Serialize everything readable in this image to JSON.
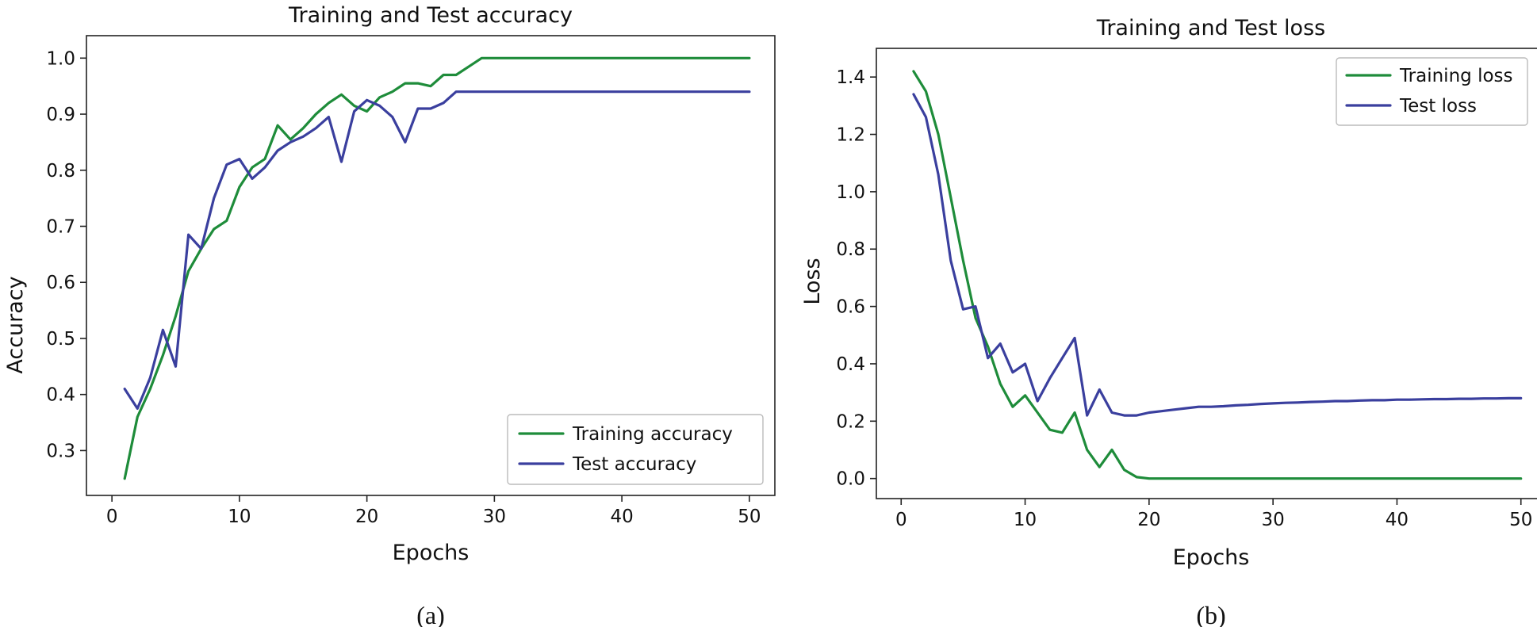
{
  "figure": {
    "captions": [
      "(a)",
      "(b)"
    ]
  },
  "colors": {
    "training": "#1e8c3a",
    "test": "#3a3f9e"
  },
  "chart_data": [
    {
      "type": "line",
      "title": "Training and Test accuracy",
      "xlabel": "Epochs",
      "ylabel": "Accuracy",
      "xlim": [
        -2,
        52
      ],
      "ylim": [
        0.22,
        1.04
      ],
      "xticks": [
        0,
        10,
        20,
        30,
        40,
        50
      ],
      "yticks": [
        0.3,
        0.4,
        0.5,
        0.6,
        0.7,
        0.8,
        0.9,
        1.0
      ],
      "ytick_labels": [
        "0.3",
        "0.4",
        "0.5",
        "0.6",
        "0.7",
        "0.8",
        "0.9",
        "1.0"
      ],
      "legend_position": "lower-right",
      "grid": false,
      "x": [
        1,
        2,
        3,
        4,
        5,
        6,
        7,
        8,
        9,
        10,
        11,
        12,
        13,
        14,
        15,
        16,
        17,
        18,
        19,
        20,
        21,
        22,
        23,
        24,
        25,
        26,
        27,
        28,
        29,
        30,
        31,
        32,
        33,
        34,
        35,
        36,
        37,
        38,
        39,
        40,
        41,
        42,
        43,
        44,
        45,
        46,
        47,
        48,
        49,
        50
      ],
      "series": [
        {
          "name": "Training accuracy",
          "color": "#1e8c3a",
          "values": [
            0.25,
            0.36,
            0.41,
            0.47,
            0.54,
            0.62,
            0.66,
            0.695,
            0.71,
            0.77,
            0.805,
            0.82,
            0.88,
            0.855,
            0.875,
            0.9,
            0.92,
            0.935,
            0.915,
            0.905,
            0.93,
            0.94,
            0.955,
            0.955,
            0.95,
            0.97,
            0.97,
            0.985,
            1.0,
            1.0,
            1.0,
            1.0,
            1.0,
            1.0,
            1.0,
            1.0,
            1.0,
            1.0,
            1.0,
            1.0,
            1.0,
            1.0,
            1.0,
            1.0,
            1.0,
            1.0,
            1.0,
            1.0,
            1.0,
            1.0
          ]
        },
        {
          "name": "Test accuracy",
          "color": "#3a3f9e",
          "values": [
            0.41,
            0.375,
            0.43,
            0.515,
            0.45,
            0.685,
            0.66,
            0.75,
            0.81,
            0.82,
            0.785,
            0.805,
            0.835,
            0.85,
            0.86,
            0.875,
            0.895,
            0.815,
            0.905,
            0.925,
            0.915,
            0.895,
            0.85,
            0.91,
            0.91,
            0.92,
            0.94,
            0.94,
            0.94,
            0.94,
            0.94,
            0.94,
            0.94,
            0.94,
            0.94,
            0.94,
            0.94,
            0.94,
            0.94,
            0.94,
            0.94,
            0.94,
            0.94,
            0.94,
            0.94,
            0.94,
            0.94,
            0.94,
            0.94,
            0.94
          ]
        }
      ]
    },
    {
      "type": "line",
      "title": "Training and Test loss",
      "xlabel": "Epochs",
      "ylabel": "Loss",
      "xlim": [
        -2,
        52
      ],
      "ylim": [
        -0.07,
        1.5
      ],
      "xticks": [
        0,
        10,
        20,
        30,
        40,
        50
      ],
      "yticks": [
        0.0,
        0.2,
        0.4,
        0.6,
        0.8,
        1.0,
        1.2,
        1.4
      ],
      "ytick_labels": [
        "0.0",
        "0.2",
        "0.4",
        "0.6",
        "0.8",
        "1.0",
        "1.2",
        "1.4"
      ],
      "legend_position": "upper-right",
      "grid": false,
      "x": [
        1,
        2,
        3,
        4,
        5,
        6,
        7,
        8,
        9,
        10,
        11,
        12,
        13,
        14,
        15,
        16,
        17,
        18,
        19,
        20,
        21,
        22,
        23,
        24,
        25,
        26,
        27,
        28,
        29,
        30,
        31,
        32,
        33,
        34,
        35,
        36,
        37,
        38,
        39,
        40,
        41,
        42,
        43,
        44,
        45,
        46,
        47,
        48,
        49,
        50
      ],
      "series": [
        {
          "name": "Training loss",
          "color": "#1e8c3a",
          "values": [
            1.42,
            1.35,
            1.2,
            0.98,
            0.76,
            0.56,
            0.46,
            0.33,
            0.25,
            0.29,
            0.23,
            0.17,
            0.16,
            0.23,
            0.1,
            0.04,
            0.1,
            0.03,
            0.005,
            0.0,
            0.0,
            0.0,
            0.0,
            0.0,
            0.0,
            0.0,
            0.0,
            0.0,
            0.0,
            0.0,
            0.0,
            0.0,
            0.0,
            0.0,
            0.0,
            0.0,
            0.0,
            0.0,
            0.0,
            0.0,
            0.0,
            0.0,
            0.0,
            0.0,
            0.0,
            0.0,
            0.0,
            0.0,
            0.0,
            0.0
          ]
        },
        {
          "name": "Test loss",
          "color": "#3a3f9e",
          "values": [
            1.34,
            1.26,
            1.06,
            0.76,
            0.59,
            0.6,
            0.42,
            0.47,
            0.37,
            0.4,
            0.27,
            0.35,
            0.42,
            0.49,
            0.22,
            0.31,
            0.23,
            0.22,
            0.22,
            0.23,
            0.235,
            0.24,
            0.245,
            0.25,
            0.25,
            0.252,
            0.255,
            0.257,
            0.26,
            0.262,
            0.264,
            0.265,
            0.267,
            0.268,
            0.27,
            0.27,
            0.272,
            0.273,
            0.273,
            0.275,
            0.275,
            0.276,
            0.277,
            0.277,
            0.278,
            0.278,
            0.279,
            0.279,
            0.28,
            0.28
          ]
        }
      ]
    }
  ]
}
